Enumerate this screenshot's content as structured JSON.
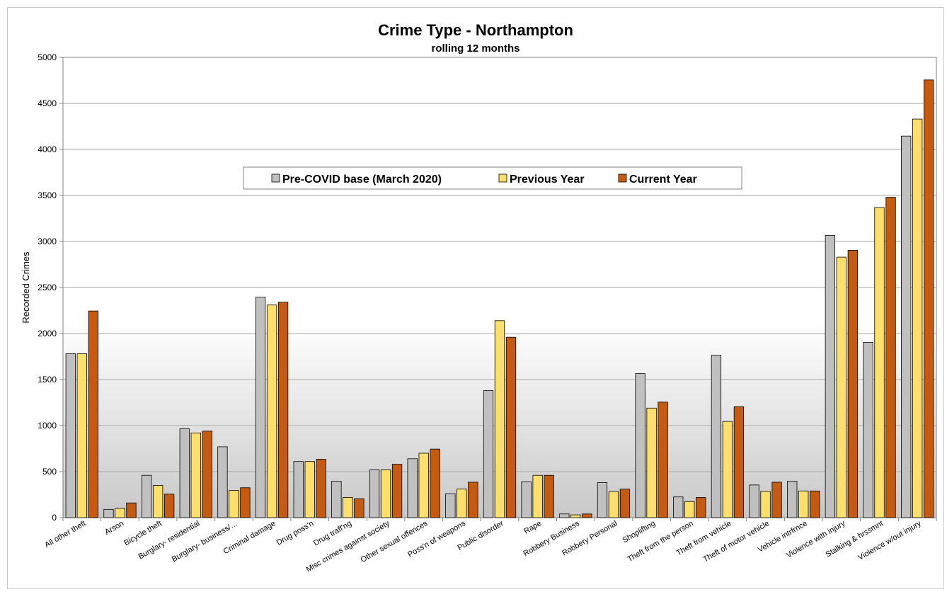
{
  "chart_data": {
    "type": "bar",
    "title": "Crime Type - Northampton",
    "subtitle": "rolling 12 months",
    "ylabel": "Recorded Crimes",
    "xlabel": "",
    "ylim": [
      0,
      5000
    ],
    "yticks": [
      0,
      500,
      1000,
      1500,
      2000,
      2500,
      3000,
      3500,
      4000,
      4500,
      5000
    ],
    "grid": true,
    "legend_position": "top-center",
    "categories": [
      "All other theft",
      "Arson",
      "Bicycle theft",
      "Burglary- residential",
      "Burglary- business/…",
      "Criminal damage",
      "Drug poss'n",
      "Drug traff'ng",
      "Misc crimes against society",
      "Other sexual offences",
      "Poss'n of weapons",
      "Public disorder",
      "Rape",
      "Robbery Business",
      "Robbery Personal",
      "Shoplifting",
      "Theft from the person",
      "Theft from vehicle",
      "Theft of motor vehicle",
      "Vehicle intrfrnce",
      "Violence with injury",
      "Stalking & hrssmnt",
      "Violence w/out injury"
    ],
    "series": [
      {
        "name": "Pre-COVID base (March 2020)",
        "color": "#c0c0c0",
        "values": [
          1780,
          90,
          460,
          965,
          770,
          2395,
          610,
          395,
          520,
          640,
          260,
          1380,
          390,
          40,
          380,
          1565,
          225,
          1765,
          355,
          395,
          3065,
          1905,
          4145
        ]
      },
      {
        "name": "Previous Year",
        "color": "#ffdf6b",
        "values": [
          1780,
          100,
          350,
          920,
          295,
          2310,
          610,
          220,
          520,
          700,
          310,
          2140,
          460,
          30,
          285,
          1190,
          175,
          1045,
          285,
          290,
          2830,
          3370,
          4330
        ]
      },
      {
        "name": "Current Year",
        "color": "#c55a11",
        "values": [
          2245,
          160,
          255,
          940,
          325,
          2340,
          635,
          205,
          580,
          745,
          385,
          1960,
          460,
          40,
          310,
          1255,
          220,
          1205,
          385,
          290,
          2905,
          3480,
          4755
        ]
      }
    ]
  }
}
